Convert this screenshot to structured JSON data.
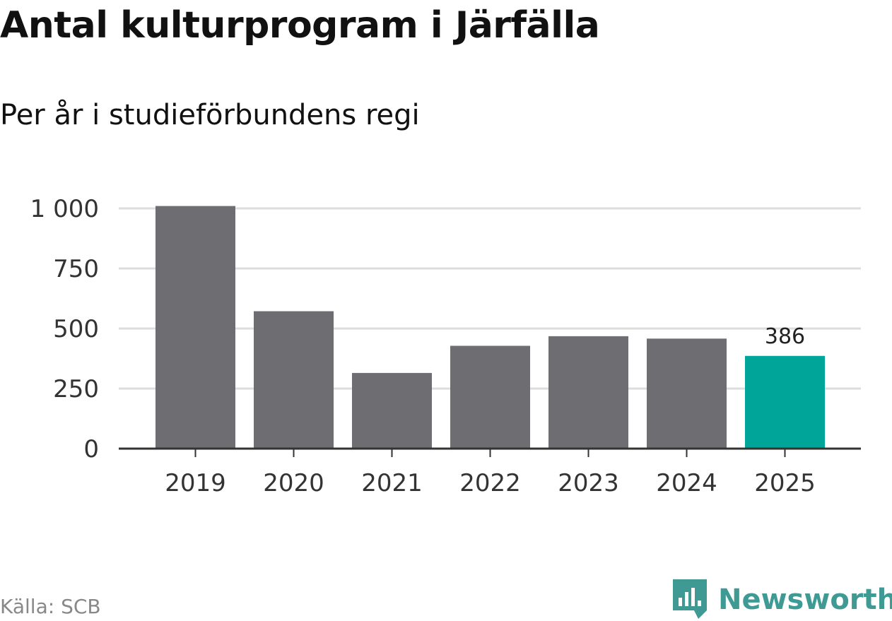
{
  "title": "Antal kulturprogram i Järfälla",
  "subtitle": "Per år i studieförbundens regi",
  "source": "Källa: SCB",
  "brand": "Newsworthy",
  "colors": {
    "bar": "#6e6d72",
    "highlight": "#00a59a",
    "grid": "#dddddd",
    "axis": "#333333",
    "brand": "#3f9a94"
  },
  "chart_data": {
    "type": "bar",
    "categories": [
      "2019",
      "2020",
      "2021",
      "2022",
      "2023",
      "2024",
      "2025"
    ],
    "values": [
      1010,
      572,
      315,
      428,
      468,
      458,
      386
    ],
    "highlight_index": 6,
    "data_labels": [
      {
        "index": 6,
        "text": "386"
      }
    ],
    "yticks": [
      {
        "value": 0,
        "label": "0"
      },
      {
        "value": 250,
        "label": "250"
      },
      {
        "value": 500,
        "label": "500"
      },
      {
        "value": 750,
        "label": "750"
      },
      {
        "value": 1000,
        "label": "1 000"
      }
    ],
    "ylim": [
      0,
      1000
    ],
    "grid": true,
    "xlabel": "",
    "ylabel": ""
  }
}
